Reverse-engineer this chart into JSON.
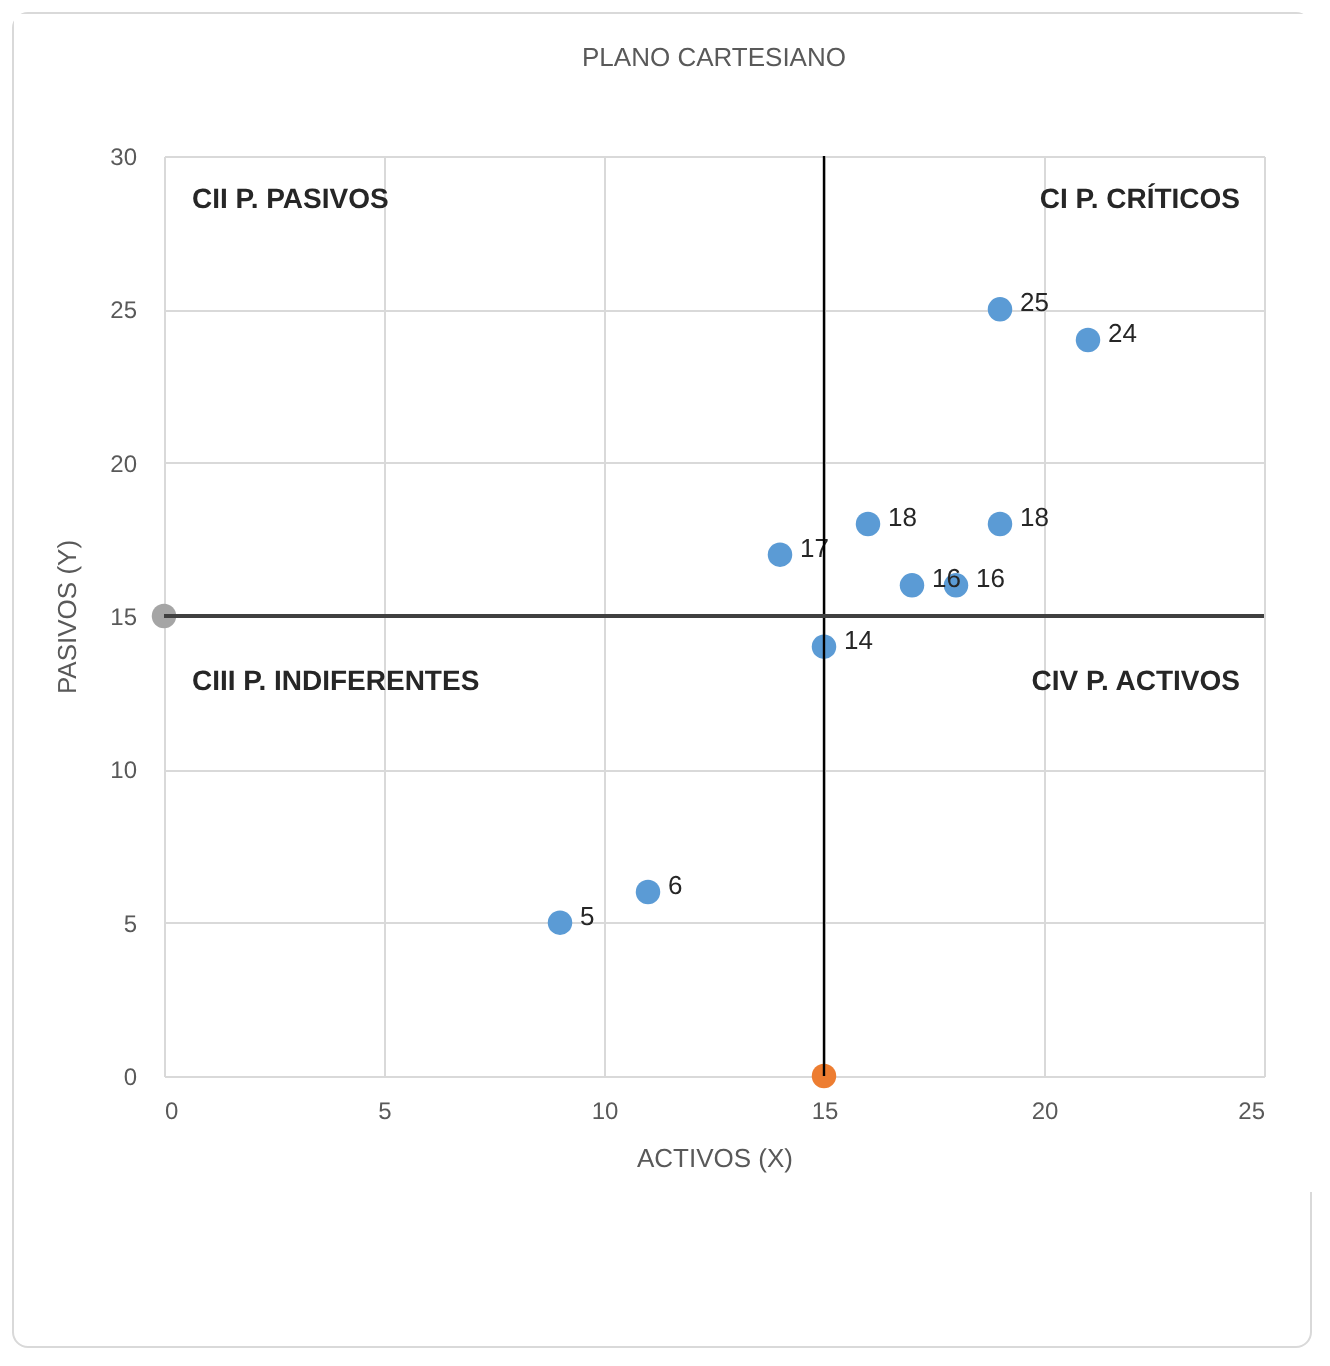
{
  "chart_data": {
    "type": "scatter",
    "title": "PLANO CARTESIANO",
    "xlabel": "ACTIVOS (X)",
    "ylabel": "PASIVOS  (Y)",
    "xlim": [
      0,
      25
    ],
    "xticks": [
      0,
      5,
      10,
      15,
      20,
      25
    ],
    "ylim": [
      0,
      30
    ],
    "yticks": [
      0,
      5,
      10,
      15,
      20,
      25,
      30
    ],
    "grid": true,
    "marker": "circle",
    "series": [
      {
        "color": "#5b9bd5",
        "x": [
          9,
          11,
          14,
          15,
          16,
          17,
          18,
          19,
          19,
          21
        ],
        "values": [
          5,
          6,
          17,
          14,
          18,
          16,
          16,
          18,
          25,
          24
        ],
        "value_labels": [
          "5",
          "6",
          "17",
          "14",
          "18",
          "16",
          "16",
          "18",
          "25",
          "24"
        ]
      },
      {
        "color": "#a5a5a5",
        "x": [
          0
        ],
        "values": [
          15
        ]
      },
      {
        "color": "#ed7d31",
        "x": [
          15
        ],
        "values": [
          0
        ]
      }
    ],
    "ref_lines": [
      {
        "axis": "x",
        "value": 15,
        "color": "#000000"
      },
      {
        "axis": "y",
        "value": 15,
        "color": "#404040"
      }
    ],
    "annotations": [
      "CII P. PASIVOS",
      "CI P. CRÍTICOS",
      "CIII P. INDIFERENTES",
      "CIV P. ACTIVOS"
    ]
  }
}
